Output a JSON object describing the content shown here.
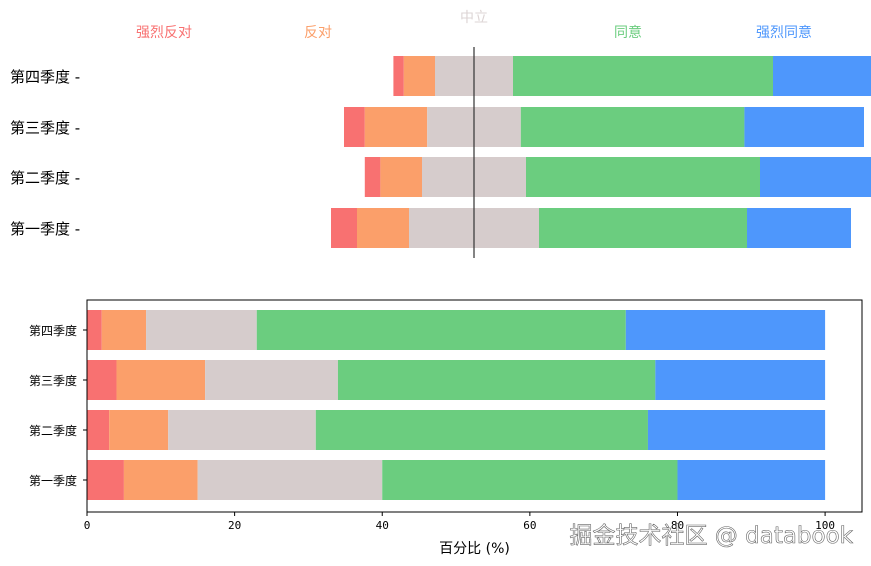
{
  "colors": {
    "strongly_disagree": "#f87171",
    "disagree": "#fb9f6a",
    "neutral": "#d6cccc",
    "agree": "#6bcd7f",
    "strongly_agree": "#4e97fc"
  },
  "watermark": "掘金技术社区 @ databook",
  "chart_data": [
    {
      "type": "bar",
      "subtype": "diverging-stacked-horizontal",
      "title": "",
      "legend": [
        "强烈反对",
        "反对",
        "中立",
        "同意",
        "强烈同意"
      ],
      "categories": [
        "第四季度",
        "第三季度",
        "第二季度",
        "第一季度"
      ],
      "series": [
        {
          "name": "强烈反对",
          "values": [
            2,
            4,
            3,
            5
          ]
        },
        {
          "name": "反对",
          "values": [
            6,
            12,
            8,
            10
          ]
        },
        {
          "name": "中立",
          "values": [
            15,
            18,
            20,
            25
          ]
        },
        {
          "name": "同意",
          "values": [
            50,
            43,
            45,
            40
          ]
        },
        {
          "name": "强烈同意",
          "values": [
            27,
            23,
            24,
            20
          ]
        }
      ],
      "center_line": "neutral midpoint",
      "axes_visible": false
    },
    {
      "type": "bar",
      "subtype": "stacked-horizontal-percent",
      "title": "",
      "xlabel": "百分比 (%)",
      "ylabel": "",
      "xlim": [
        0,
        105
      ],
      "xticks": [
        0,
        20,
        40,
        60,
        80,
        100
      ],
      "categories": [
        "第四季度",
        "第三季度",
        "第二季度",
        "第一季度"
      ],
      "series": [
        {
          "name": "强烈反对",
          "values": [
            2,
            4,
            3,
            5
          ]
        },
        {
          "name": "反对",
          "values": [
            6,
            12,
            8,
            10
          ]
        },
        {
          "name": "中立",
          "values": [
            15,
            18,
            20,
            25
          ]
        },
        {
          "name": "同意",
          "values": [
            50,
            43,
            45,
            40
          ]
        },
        {
          "name": "强烈同意",
          "values": [
            27,
            23,
            24,
            20
          ]
        }
      ],
      "grid": false
    }
  ]
}
